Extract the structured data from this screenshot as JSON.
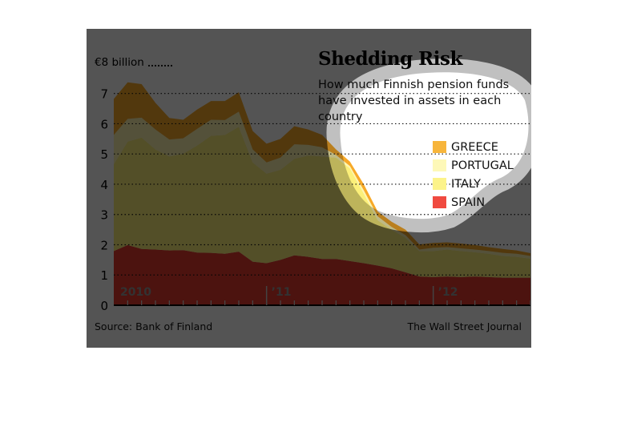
{
  "chart_data": {
    "type": "area",
    "stacked": true,
    "title": "Shedding Risk",
    "subtitle": "How much Finnish pension funds have invested in assets in each country",
    "unit_label": "€8 billion",
    "ylabel": "€ billion",
    "ylim": [
      0,
      8
    ],
    "yticks": [
      "0",
      "1",
      "2",
      "3",
      "4",
      "5",
      "6",
      "7"
    ],
    "grid": true,
    "x_labels": [
      {
        "index": 0,
        "label": "2010"
      },
      {
        "index": 11,
        "label": "’11"
      },
      {
        "index": 23,
        "label": "’12"
      }
    ],
    "n_points": 31,
    "legend_position": "top-right",
    "series": [
      {
        "name": "SPAIN",
        "color": "#e53a30",
        "values": [
          1.79,
          1.99,
          1.86,
          1.84,
          1.81,
          1.82,
          1.74,
          1.73,
          1.7,
          1.77,
          1.44,
          1.39,
          1.5,
          1.65,
          1.6,
          1.53,
          1.53,
          1.46,
          1.39,
          1.31,
          1.22,
          1.09,
          0.95,
          0.93,
          0.95,
          0.93,
          0.95,
          0.93,
          0.91,
          0.91,
          0.91
        ]
      },
      {
        "name": "ITALY",
        "color": "#fcf07a",
        "values": [
          2.87,
          3.42,
          3.68,
          3.31,
          3.11,
          3.19,
          3.54,
          3.87,
          3.93,
          4.13,
          3.28,
          2.96,
          2.98,
          3.19,
          3.35,
          3.39,
          3.35,
          3.07,
          2.3,
          1.5,
          1.28,
          1.14,
          0.84,
          0.86,
          0.89,
          0.86,
          0.8,
          0.77,
          0.72,
          0.69,
          0.63
        ]
      },
      {
        "name": "PORTUGAL",
        "color": "#fdf6b0",
        "values": [
          0.97,
          0.75,
          0.66,
          0.66,
          0.56,
          0.51,
          0.55,
          0.53,
          0.49,
          0.5,
          0.43,
          0.37,
          0.4,
          0.48,
          0.35,
          0.3,
          0.09,
          0.07,
          0.11,
          0.13,
          0.09,
          0.09,
          0.05,
          0.11,
          0.08,
          0.09,
          0.09,
          0.09,
          0.1,
          0.1,
          0.09
        ]
      },
      {
        "name": "GREECE",
        "color": "#f7a928",
        "values": [
          1.19,
          1.21,
          1.11,
          0.88,
          0.71,
          0.61,
          0.64,
          0.62,
          0.63,
          0.64,
          0.61,
          0.62,
          0.62,
          0.6,
          0.51,
          0.41,
          0.18,
          0.15,
          0.2,
          0.16,
          0.17,
          0.18,
          0.17,
          0.16,
          0.16,
          0.16,
          0.15,
          0.13,
          0.13,
          0.11,
          0.09
        ]
      }
    ],
    "legend_order": [
      "GREECE",
      "PORTUGAL",
      "ITALY",
      "SPAIN"
    ]
  },
  "source": "Source: Bank of Finland",
  "credit": "The Wall Street Journal"
}
